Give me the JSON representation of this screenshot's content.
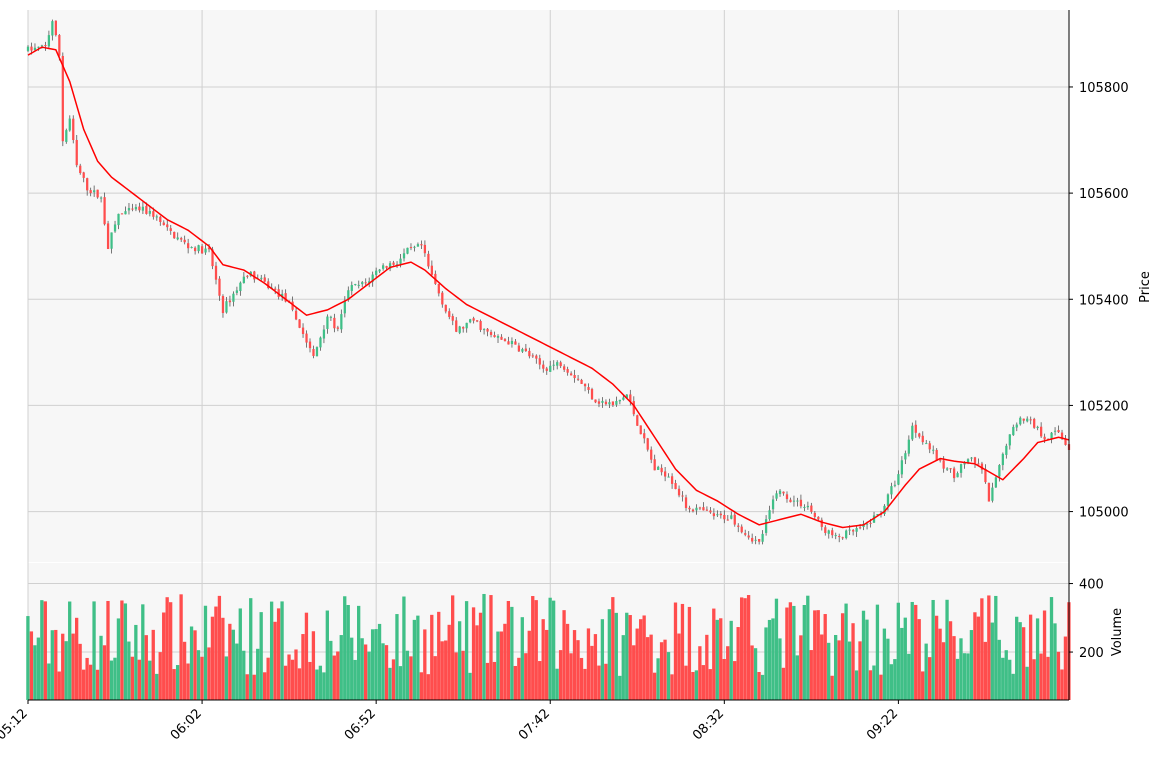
{
  "chart_data": {
    "type": "candlestick",
    "x_tick_labels": [
      "05:12",
      "06:02",
      "06:52",
      "07:42",
      "08:32",
      "09:22"
    ],
    "price_axis": {
      "label": "Price",
      "ticks": [
        105000,
        105200,
        105400,
        105600,
        105800
      ],
      "tick_labels": [
        "105000",
        "105200",
        "105400",
        "105600",
        "105800"
      ],
      "range": [
        104905,
        105945
      ]
    },
    "volume_axis": {
      "label": "Volume",
      "ticks": [
        200,
        400
      ],
      "tick_labels": [
        "200",
        "400"
      ],
      "range": [
        60,
        460
      ]
    },
    "bars": 300,
    "moving_average_color": "#ff0000",
    "up_color": "#26a69a",
    "up_fill": "#3fbf87",
    "down_color": "#ff4d4d",
    "grid": true,
    "price_path": [
      [
        0,
        105870
      ],
      [
        5,
        105875
      ],
      [
        7,
        105925
      ],
      [
        9,
        105860
      ],
      [
        10,
        105700
      ],
      [
        12,
        105740
      ],
      [
        14,
        105650
      ],
      [
        17,
        105610
      ],
      [
        21,
        105590
      ],
      [
        23,
        105500
      ],
      [
        26,
        105560
      ],
      [
        32,
        105570
      ],
      [
        36,
        105560
      ],
      [
        40,
        105530
      ],
      [
        46,
        105500
      ],
      [
        52,
        105490
      ],
      [
        56,
        105380
      ],
      [
        60,
        105420
      ],
      [
        63,
        105450
      ],
      [
        68,
        105430
      ],
      [
        74,
        105400
      ],
      [
        78,
        105350
      ],
      [
        82,
        105290
      ],
      [
        86,
        105370
      ],
      [
        89,
        105340
      ],
      [
        92,
        105420
      ],
      [
        97,
        105430
      ],
      [
        101,
        105460
      ],
      [
        106,
        105470
      ],
      [
        109,
        105490
      ],
      [
        113,
        105500
      ],
      [
        115,
        105460
      ],
      [
        120,
        105380
      ],
      [
        123,
        105340
      ],
      [
        128,
        105360
      ],
      [
        133,
        105330
      ],
      [
        138,
        105320
      ],
      [
        143,
        105300
      ],
      [
        148,
        105270
      ],
      [
        153,
        105280
      ],
      [
        158,
        105250
      ],
      [
        163,
        105210
      ],
      [
        168,
        105200
      ],
      [
        172,
        105220
      ],
      [
        176,
        105150
      ],
      [
        180,
        105080
      ],
      [
        184,
        105070
      ],
      [
        189,
        105010
      ],
      [
        194,
        105000
      ],
      [
        198,
        104990
      ],
      [
        202,
        104990
      ],
      [
        206,
        104960
      ],
      [
        210,
        104940
      ],
      [
        215,
        105040
      ],
      [
        220,
        105020
      ],
      [
        224,
        105010
      ],
      [
        228,
        104970
      ],
      [
        232,
        104950
      ],
      [
        236,
        104960
      ],
      [
        240,
        104970
      ],
      [
        245,
        105000
      ],
      [
        250,
        105070
      ],
      [
        254,
        105160
      ],
      [
        258,
        105130
      ],
      [
        262,
        105090
      ],
      [
        266,
        105070
      ],
      [
        270,
        105100
      ],
      [
        274,
        105080
      ],
      [
        276,
        105020
      ],
      [
        278,
        105060
      ],
      [
        281,
        105130
      ],
      [
        285,
        105180
      ],
      [
        288,
        105170
      ],
      [
        292,
        105140
      ],
      [
        296,
        105150
      ],
      [
        299,
        105120
      ]
    ],
    "ma_path": [
      [
        0,
        105860
      ],
      [
        4,
        105875
      ],
      [
        8,
        105870
      ],
      [
        12,
        105810
      ],
      [
        16,
        105720
      ],
      [
        20,
        105660
      ],
      [
        24,
        105630
      ],
      [
        28,
        105610
      ],
      [
        34,
        105580
      ],
      [
        40,
        105550
      ],
      [
        46,
        105530
      ],
      [
        52,
        105500
      ],
      [
        56,
        105465
      ],
      [
        62,
        105455
      ],
      [
        68,
        105430
      ],
      [
        74,
        105400
      ],
      [
        80,
        105370
      ],
      [
        86,
        105380
      ],
      [
        92,
        105400
      ],
      [
        98,
        105430
      ],
      [
        104,
        105460
      ],
      [
        110,
        105470
      ],
      [
        114,
        105455
      ],
      [
        120,
        105420
      ],
      [
        126,
        105390
      ],
      [
        132,
        105370
      ],
      [
        138,
        105350
      ],
      [
        144,
        105330
      ],
      [
        150,
        105310
      ],
      [
        156,
        105290
      ],
      [
        162,
        105270
      ],
      [
        168,
        105240
      ],
      [
        174,
        105200
      ],
      [
        180,
        105140
      ],
      [
        186,
        105080
      ],
      [
        192,
        105040
      ],
      [
        198,
        105020
      ],
      [
        204,
        104995
      ],
      [
        210,
        104975
      ],
      [
        216,
        104985
      ],
      [
        222,
        104995
      ],
      [
        228,
        104980
      ],
      [
        234,
        104970
      ],
      [
        240,
        104975
      ],
      [
        246,
        105000
      ],
      [
        252,
        105050
      ],
      [
        256,
        105080
      ],
      [
        262,
        105100
      ],
      [
        266,
        105095
      ],
      [
        272,
        105090
      ],
      [
        276,
        105075
      ],
      [
        280,
        105060
      ],
      [
        286,
        105100
      ],
      [
        290,
        105130
      ],
      [
        296,
        105140
      ],
      [
        299,
        105135
      ]
    ]
  }
}
